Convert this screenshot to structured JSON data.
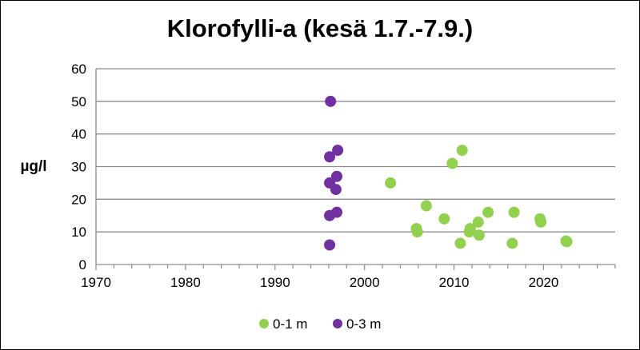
{
  "chart_data": {
    "type": "scatter",
    "title": "Klorofylli-a (kesä 1.7.-7.9.)",
    "xlabel": "",
    "ylabel": "µg/l",
    "xlim": [
      1970,
      2028
    ],
    "ylim": [
      0,
      60
    ],
    "xticks": [
      1970,
      1980,
      1990,
      2000,
      2010,
      2020
    ],
    "yticks": [
      0,
      10,
      20,
      30,
      40,
      50,
      60
    ],
    "grid": true,
    "legend_position": "bottom",
    "series": [
      {
        "name": "0-1 m",
        "color": "#92d050",
        "points": [
          {
            "x": 2002.9,
            "y": 25
          },
          {
            "x": 2005.8,
            "y": 11
          },
          {
            "x": 2005.9,
            "y": 10
          },
          {
            "x": 2006.9,
            "y": 18
          },
          {
            "x": 2008.9,
            "y": 14
          },
          {
            "x": 2009.8,
            "y": 31
          },
          {
            "x": 2010.7,
            "y": 6.5
          },
          {
            "x": 2010.9,
            "y": 35
          },
          {
            "x": 2011.7,
            "y": 10
          },
          {
            "x": 2011.8,
            "y": 11
          },
          {
            "x": 2012.7,
            "y": 13
          },
          {
            "x": 2012.8,
            "y": 9
          },
          {
            "x": 2013.8,
            "y": 16
          },
          {
            "x": 2016.5,
            "y": 6.5
          },
          {
            "x": 2016.7,
            "y": 16
          },
          {
            "x": 2019.6,
            "y": 14
          },
          {
            "x": 2019.7,
            "y": 13
          },
          {
            "x": 2022.5,
            "y": 7.2
          },
          {
            "x": 2022.6,
            "y": 7
          }
        ]
      },
      {
        "name": "0-3 m",
        "color": "#7030a0",
        "points": [
          {
            "x": 1996.1,
            "y": 6
          },
          {
            "x": 1996.1,
            "y": 15
          },
          {
            "x": 1996.1,
            "y": 25
          },
          {
            "x": 1996.1,
            "y": 33
          },
          {
            "x": 1996.2,
            "y": 50
          },
          {
            "x": 1996.9,
            "y": 16
          },
          {
            "x": 1996.8,
            "y": 23
          },
          {
            "x": 1996.9,
            "y": 27
          },
          {
            "x": 1997.0,
            "y": 35
          }
        ]
      }
    ]
  }
}
